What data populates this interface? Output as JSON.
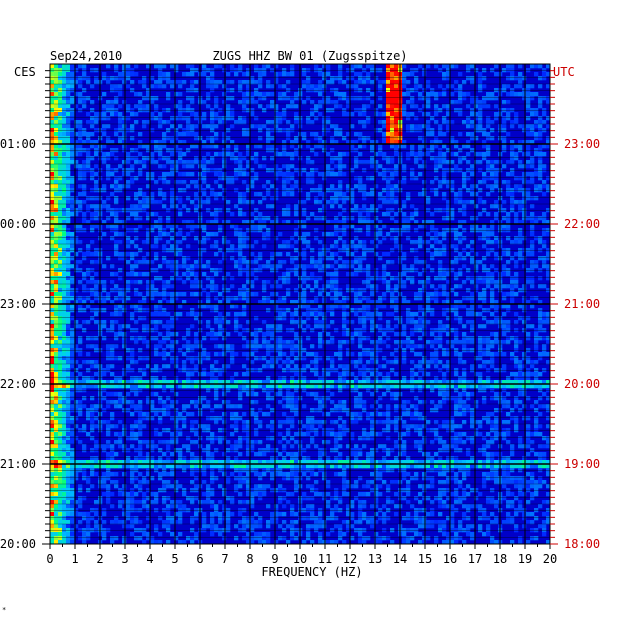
{
  "chart_data": {
    "type": "heatmap",
    "date": "Sep24,2010",
    "title": "ZUGS HHZ BW 01 (Zugsspitze)",
    "xlabel": "FREQUENCY (HZ)",
    "x_ticks": [
      "0",
      "1",
      "2",
      "3",
      "4",
      "5",
      "6",
      "7",
      "8",
      "9",
      "10",
      "11",
      "12",
      "13",
      "14",
      "15",
      "16",
      "17",
      "18",
      "19",
      "20"
    ],
    "xlim": [
      0,
      20
    ],
    "left_axis": {
      "zone": "CES",
      "ticks": [
        "01:00",
        "00:00",
        "23:00",
        "22:00",
        "21:00",
        "20:00"
      ],
      "color": "#000000"
    },
    "right_axis": {
      "zone": "UTC",
      "ticks": [
        "23:00",
        "22:00",
        "21:00",
        "20:00",
        "19:00",
        "18:00"
      ],
      "color": "#cc0000"
    },
    "time_range_utc": [
      "18:00",
      "24:00"
    ],
    "rows_per_hour": 12,
    "features": [
      {
        "kind": "low-frequency band",
        "freq_range_hz": [
          0.0,
          1.0
        ],
        "time_utc": "18:00-24:00",
        "intensity": "high"
      },
      {
        "kind": "narrow tonal line",
        "freq_hz": 13.8,
        "time_utc": "23:00-24:00",
        "intensity": "very high"
      },
      {
        "kind": "broadband event",
        "freq_range_hz": [
          0,
          20
        ],
        "time_utc": "19:00",
        "intensity": "medium"
      },
      {
        "kind": "broadband event",
        "freq_range_hz": [
          0,
          20
        ],
        "time_utc": "20:00",
        "intensity": "medium"
      }
    ],
    "colors": {
      "background": "#0000c8",
      "low": "#0000ff",
      "mid": "#00c8ff",
      "high": "#ffff00",
      "peak": "#ff0000",
      "grid": "#000000"
    },
    "grid": true,
    "legend": "none"
  },
  "corner_mark": "*"
}
